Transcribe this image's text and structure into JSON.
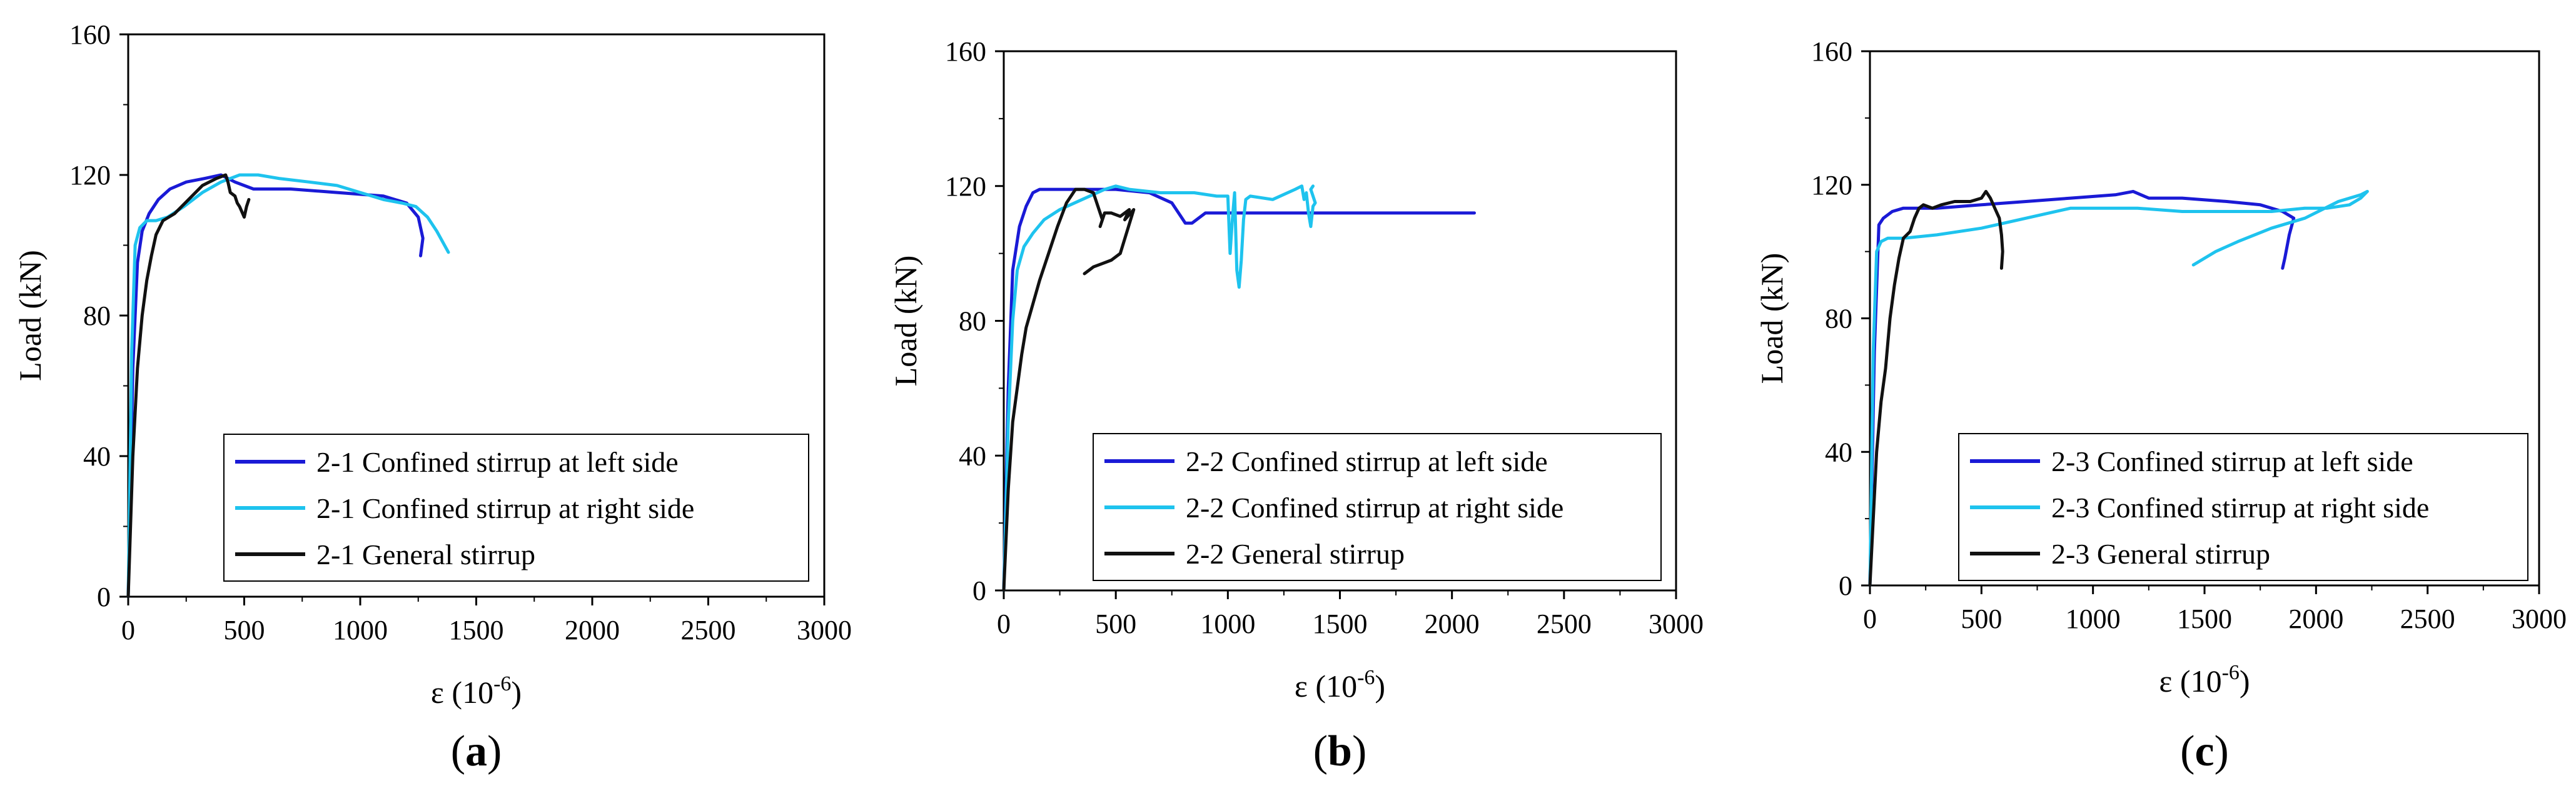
{
  "chart_data": [
    {
      "type": "line",
      "panel_label": "a",
      "xlabel": "ε (10",
      "xlabel_sup": "-6",
      "xlabel_close": ")",
      "ylabel": "Load (kN)",
      "xlim": [
        0,
        3000
      ],
      "ylim": [
        0,
        160
      ],
      "xticks": [
        "0",
        "500",
        "1000",
        "1500",
        "2000",
        "2500",
        "3000"
      ],
      "yticks": [
        "0",
        "40",
        "80",
        "120",
        "160"
      ],
      "legend_position": "bottom-right",
      "series": [
        {
          "name": "2-1 Confined stirrup at left side",
          "color": "#1a1ad6",
          "x": [
            0,
            20,
            40,
            60,
            90,
            130,
            180,
            250,
            330,
            400,
            460,
            540,
            700,
            900,
            1100,
            1200,
            1250,
            1270,
            1260
          ],
          "y": [
            0,
            65,
            95,
            104,
            109,
            113,
            116,
            118,
            119,
            120,
            118,
            116,
            116,
            115,
            114,
            112,
            108,
            102,
            97
          ]
        },
        {
          "name": "2-1 Confined stirrup at right side",
          "color": "#1ec3ee",
          "x": [
            0,
            15,
            30,
            50,
            80,
            120,
            170,
            240,
            320,
            400,
            480,
            560,
            650,
            780,
            900,
            1000,
            1100,
            1180,
            1240,
            1290,
            1330,
            1380
          ],
          "y": [
            0,
            70,
            100,
            105,
            107,
            107,
            108,
            111,
            115,
            118,
            120,
            120,
            119,
            118,
            117,
            115,
            113,
            112,
            111,
            108,
            104,
            98
          ]
        },
        {
          "name": "2-1 General stirrup",
          "color": "#111111",
          "x": [
            0,
            20,
            40,
            60,
            80,
            100,
            120,
            150,
            200,
            260,
            320,
            380,
            420,
            430,
            440,
            460,
            470,
            480,
            500,
            510,
            520
          ],
          "y": [
            0,
            40,
            65,
            80,
            90,
            97,
            103,
            107,
            109,
            113,
            117,
            119,
            120,
            118,
            115,
            114,
            112,
            111,
            108,
            111,
            113
          ]
        }
      ]
    },
    {
      "type": "line",
      "panel_label": "b",
      "xlabel": "ε (10",
      "xlabel_sup": "-6",
      "xlabel_close": ")",
      "ylabel": "Load (kN)",
      "xlim": [
        0,
        3000
      ],
      "ylim": [
        0,
        160
      ],
      "xticks": [
        "0",
        "500",
        "1000",
        "1500",
        "2000",
        "2500",
        "3000"
      ],
      "yticks": [
        "0",
        "40",
        "80",
        "120",
        "160"
      ],
      "legend_position": "bottom-right",
      "series": [
        {
          "name": "2-2 Confined stirrup at left side",
          "color": "#1a1ad6",
          "x": [
            0,
            20,
            40,
            70,
            100,
            130,
            160,
            300,
            500,
            650,
            750,
            790,
            810,
            840,
            900,
            1000,
            1200,
            1400,
            1700,
            2000,
            2100
          ],
          "y": [
            0,
            60,
            95,
            108,
            114,
            118,
            119,
            119,
            119,
            118,
            115,
            111,
            109,
            109,
            112,
            112,
            112,
            112,
            112,
            112,
            112
          ]
        },
        {
          "name": "2-2 Confined stirrup at right side",
          "color": "#1ec3ee",
          "x": [
            0,
            20,
            40,
            60,
            90,
            130,
            180,
            250,
            350,
            450,
            500,
            560,
            700,
            850,
            950,
            1000,
            1010,
            1020,
            1030,
            1040,
            1050,
            1060,
            1070,
            1080,
            1100,
            1200,
            1300,
            1330,
            1340,
            1350,
            1360,
            1370,
            1380,
            1390,
            1370,
            1380
          ],
          "y": [
            0,
            50,
            80,
            95,
            102,
            106,
            110,
            113,
            116,
            119,
            120,
            119,
            118,
            118,
            117,
            117,
            100,
            110,
            118,
            95,
            90,
            98,
            110,
            116,
            117,
            116,
            119,
            120,
            116,
            118,
            112,
            108,
            114,
            115,
            119,
            120
          ]
        },
        {
          "name": "2-2 General stirrup",
          "color": "#111111",
          "x": [
            0,
            20,
            40,
            60,
            80,
            100,
            130,
            160,
            200,
            240,
            280,
            320,
            360,
            400,
            420,
            440,
            430,
            450,
            480,
            520,
            560,
            540,
            580,
            520,
            480,
            440,
            400,
            380,
            360
          ],
          "y": [
            0,
            30,
            50,
            60,
            70,
            78,
            85,
            92,
            100,
            108,
            115,
            119,
            119,
            118,
            114,
            110,
            108,
            112,
            112,
            111,
            113,
            110,
            113,
            100,
            98,
            97,
            96,
            95,
            94
          ]
        }
      ]
    },
    {
      "type": "line",
      "panel_label": "c",
      "xlabel": "ε (10",
      "xlabel_sup": "-6",
      "xlabel_close": ")",
      "ylabel": "Load (kN)",
      "xlim": [
        0,
        3000
      ],
      "ylim": [
        0,
        160
      ],
      "xticks": [
        "0",
        "500",
        "1000",
        "1500",
        "2000",
        "2500",
        "3000"
      ],
      "yticks": [
        "0",
        "40",
        "80",
        "120",
        "160"
      ],
      "legend_position": "bottom-right",
      "series": [
        {
          "name": "2-3 Confined stirrup at left side",
          "color": "#1a1ad6",
          "x": [
            0,
            20,
            40,
            60,
            100,
            150,
            300,
            500,
            700,
            900,
            1100,
            1180,
            1250,
            1400,
            1600,
            1750,
            1850,
            1900,
            1880,
            1860,
            1850
          ],
          "y": [
            0,
            70,
            108,
            110,
            112,
            113,
            113,
            114,
            115,
            116,
            117,
            118,
            116,
            116,
            115,
            114,
            112,
            110,
            105,
            98,
            95
          ]
        },
        {
          "name": "2-3 Confined stirrup at right side",
          "color": "#1ec3ee",
          "x": [
            0,
            15,
            30,
            50,
            80,
            150,
            300,
            500,
            700,
            900,
            1000,
            1200,
            1400,
            1600,
            1800,
            1950,
            2050,
            2150,
            2200,
            2230,
            2200,
            2100,
            1950,
            1800,
            1650,
            1550,
            1450
          ],
          "y": [
            0,
            70,
            100,
            103,
            104,
            104,
            105,
            107,
            110,
            113,
            113,
            113,
            112,
            112,
            112,
            113,
            113,
            114,
            116,
            118,
            117,
            115,
            110,
            107,
            103,
            100,
            96
          ]
        },
        {
          "name": "2-3 General stirrup",
          "color": "#111111",
          "x": [
            0,
            15,
            30,
            50,
            70,
            90,
            110,
            130,
            150,
            180,
            200,
            220,
            240,
            280,
            320,
            380,
            450,
            500,
            520,
            540,
            560,
            580,
            590,
            595,
            590
          ],
          "y": [
            0,
            20,
            40,
            55,
            65,
            80,
            90,
            98,
            104,
            106,
            110,
            113,
            114,
            113,
            114,
            115,
            115,
            116,
            118,
            116,
            113,
            110,
            105,
            100,
            95
          ]
        }
      ]
    }
  ]
}
